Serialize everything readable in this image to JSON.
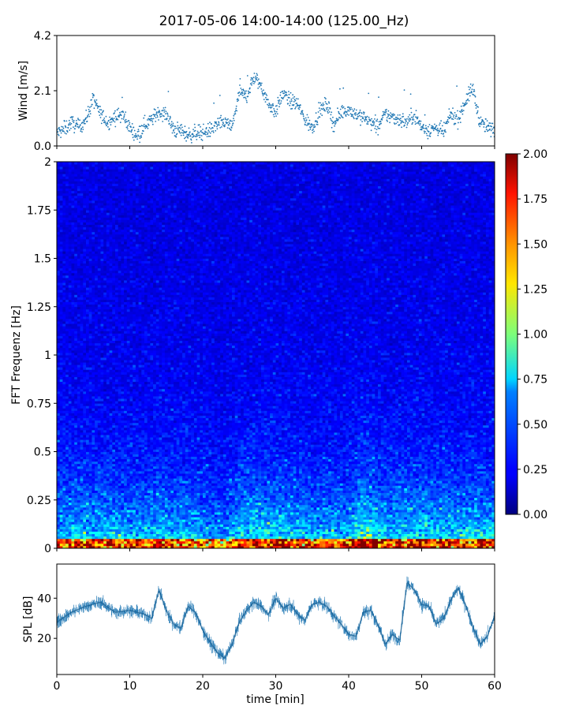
{
  "title": "2017-05-06 14:00-14:00 (125.00_Hz)",
  "chart_data": [
    {
      "type": "scatter",
      "name": "wind",
      "ylabel": "Wind [m/s]",
      "ylim": [
        0.0,
        4.2
      ],
      "yticks": [
        "0.0",
        "2.1",
        "4.2"
      ],
      "yticks_values": [
        0.0,
        2.1,
        4.2
      ],
      "xlim": [
        0,
        60
      ],
      "color": "#1f77b4",
      "series": [
        {
          "name": "wind speed",
          "x": [
            0,
            1,
            2,
            3,
            4,
            5,
            6,
            7,
            8,
            9,
            10,
            11,
            12,
            13,
            14,
            15,
            16,
            17,
            18,
            19,
            20,
            21,
            22,
            23,
            24,
            25,
            26,
            27,
            28,
            29,
            30,
            31,
            32,
            33,
            34,
            35,
            36,
            37,
            38,
            39,
            40,
            41,
            42,
            43,
            44,
            45,
            46,
            47,
            48,
            49,
            50,
            51,
            52,
            53,
            54,
            55,
            56,
            57,
            58,
            59,
            60
          ],
          "y": [
            0.5,
            0.6,
            0.9,
            0.7,
            1.0,
            1.8,
            1.2,
            0.9,
            1.1,
            1.2,
            0.7,
            0.4,
            0.8,
            1.0,
            1.3,
            1.2,
            0.6,
            0.6,
            0.4,
            0.5,
            0.5,
            0.6,
            0.8,
            0.9,
            0.7,
            2.0,
            1.9,
            2.6,
            2.3,
            1.6,
            1.3,
            2.0,
            1.7,
            1.6,
            1.0,
            0.7,
            1.3,
            1.6,
            0.8,
            1.3,
            1.4,
            1.2,
            1.1,
            0.9,
            0.7,
            1.2,
            1.1,
            1.0,
            0.9,
            1.2,
            0.7,
            0.6,
            0.7,
            0.5,
            1.2,
            1.0,
            1.7,
            2.2,
            0.9,
            0.7,
            0.6
          ]
        }
      ]
    },
    {
      "type": "heatmap",
      "name": "spectrogram",
      "ylabel": "FFT Frequenz [Hz]",
      "ylim": [
        0,
        2
      ],
      "yticks": [
        "0",
        "0.25",
        "0.5",
        "0.75",
        "1",
        "1.25",
        "1.5",
        "1.75",
        "2"
      ],
      "yticks_values": [
        0,
        0.25,
        0.5,
        0.75,
        1,
        1.25,
        1.5,
        1.75,
        2
      ],
      "xlim": [
        0,
        60
      ],
      "colormap": "jet",
      "colorbar": {
        "min": 0.0,
        "max": 2.0,
        "ticks": [
          "0.00",
          "0.25",
          "0.50",
          "0.75",
          "1.00",
          "1.25",
          "1.50",
          "1.75",
          "2.00"
        ],
        "ticks_values": [
          0,
          0.25,
          0.5,
          0.75,
          1.0,
          1.25,
          1.5,
          1.75,
          2.0
        ]
      },
      "time_profile": {
        "x": [
          0,
          5,
          10,
          15,
          20,
          23,
          25,
          30,
          35,
          40,
          42,
          45,
          50,
          55,
          58,
          60
        ],
        "level": [
          0.55,
          0.55,
          0.5,
          0.55,
          0.5,
          0.35,
          0.6,
          0.6,
          0.5,
          0.55,
          0.75,
          0.55,
          0.6,
          0.55,
          0.6,
          0.55
        ]
      }
    },
    {
      "type": "line",
      "name": "spl",
      "ylabel": "SPL [dB]",
      "xlabel": "time [min]",
      "ylim": [
        2,
        57
      ],
      "yticks": [
        "20",
        "40"
      ],
      "yticks_values": [
        20,
        40
      ],
      "xlim": [
        0,
        60
      ],
      "xticks": [
        "0",
        "10",
        "20",
        "30",
        "40",
        "50",
        "60"
      ],
      "xticks_values": [
        0,
        10,
        20,
        30,
        40,
        50,
        60
      ],
      "color": "#1f77b4",
      "series": [
        {
          "name": "SPL",
          "x": [
            0,
            2,
            4,
            6,
            8,
            10,
            12,
            13,
            14,
            15,
            16,
            17,
            18,
            19,
            20,
            21,
            22,
            23,
            24,
            25,
            26,
            27,
            28,
            29,
            30,
            31,
            32,
            33,
            34,
            35,
            36,
            37,
            38,
            39,
            40,
            41,
            42,
            43,
            44,
            45,
            46,
            47,
            48,
            49,
            50,
            51,
            52,
            53,
            54,
            55,
            56,
            57,
            58,
            59,
            60
          ],
          "y": [
            28,
            33,
            36,
            38,
            33,
            34,
            32,
            30,
            44,
            34,
            27,
            25,
            36,
            33,
            24,
            18,
            13,
            10,
            17,
            28,
            34,
            38,
            36,
            32,
            40,
            35,
            37,
            32,
            29,
            37,
            38,
            36,
            31,
            27,
            22,
            21,
            33,
            34,
            27,
            17,
            22,
            19,
            48,
            44,
            37,
            36,
            27,
            30,
            39,
            45,
            37,
            26,
            17,
            21,
            31
          ]
        }
      ]
    }
  ]
}
